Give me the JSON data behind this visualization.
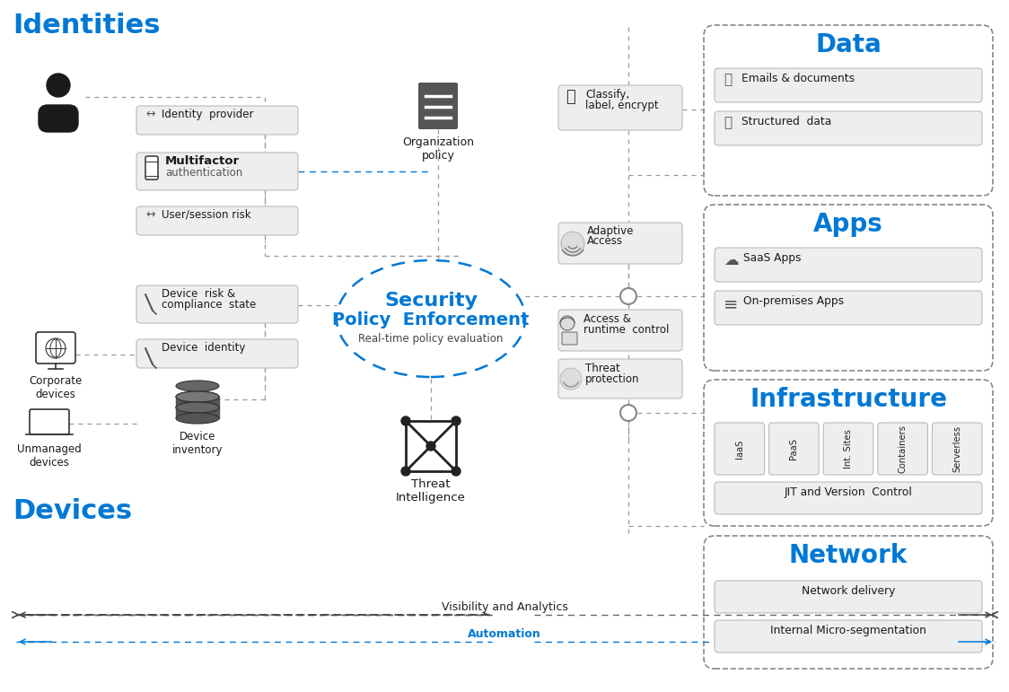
{
  "bg_color": "#ffffff",
  "blue": "#0078D4",
  "dark": "#1a1a1a",
  "gray_box": "#eeeeee",
  "gray_border": "#bbbbbb",
  "gray_line": "#999999",
  "title_identities": "Identities",
  "title_devices": "Devices",
  "title_data": "Data",
  "title_apps": "Apps",
  "title_infra": "Infrastructure",
  "title_network": "Network",
  "center_line1": "Security",
  "center_line2": "Policy  Enforcement",
  "center_sub": "Real-time policy evaluation",
  "org_policy": "Organization\npolicy",
  "threat_intel": "Threat\nIntelligence",
  "vis_label": "Visibility and Analytics",
  "auto_label": "Automation",
  "infra_items": [
    "IaaS",
    "PaaS",
    "Int. Sites",
    "Containers",
    "Serverless"
  ],
  "infra_bottom": "JIT and Version  Control",
  "net_items": [
    "Network delivery",
    "Internal Micro-segmentation"
  ]
}
